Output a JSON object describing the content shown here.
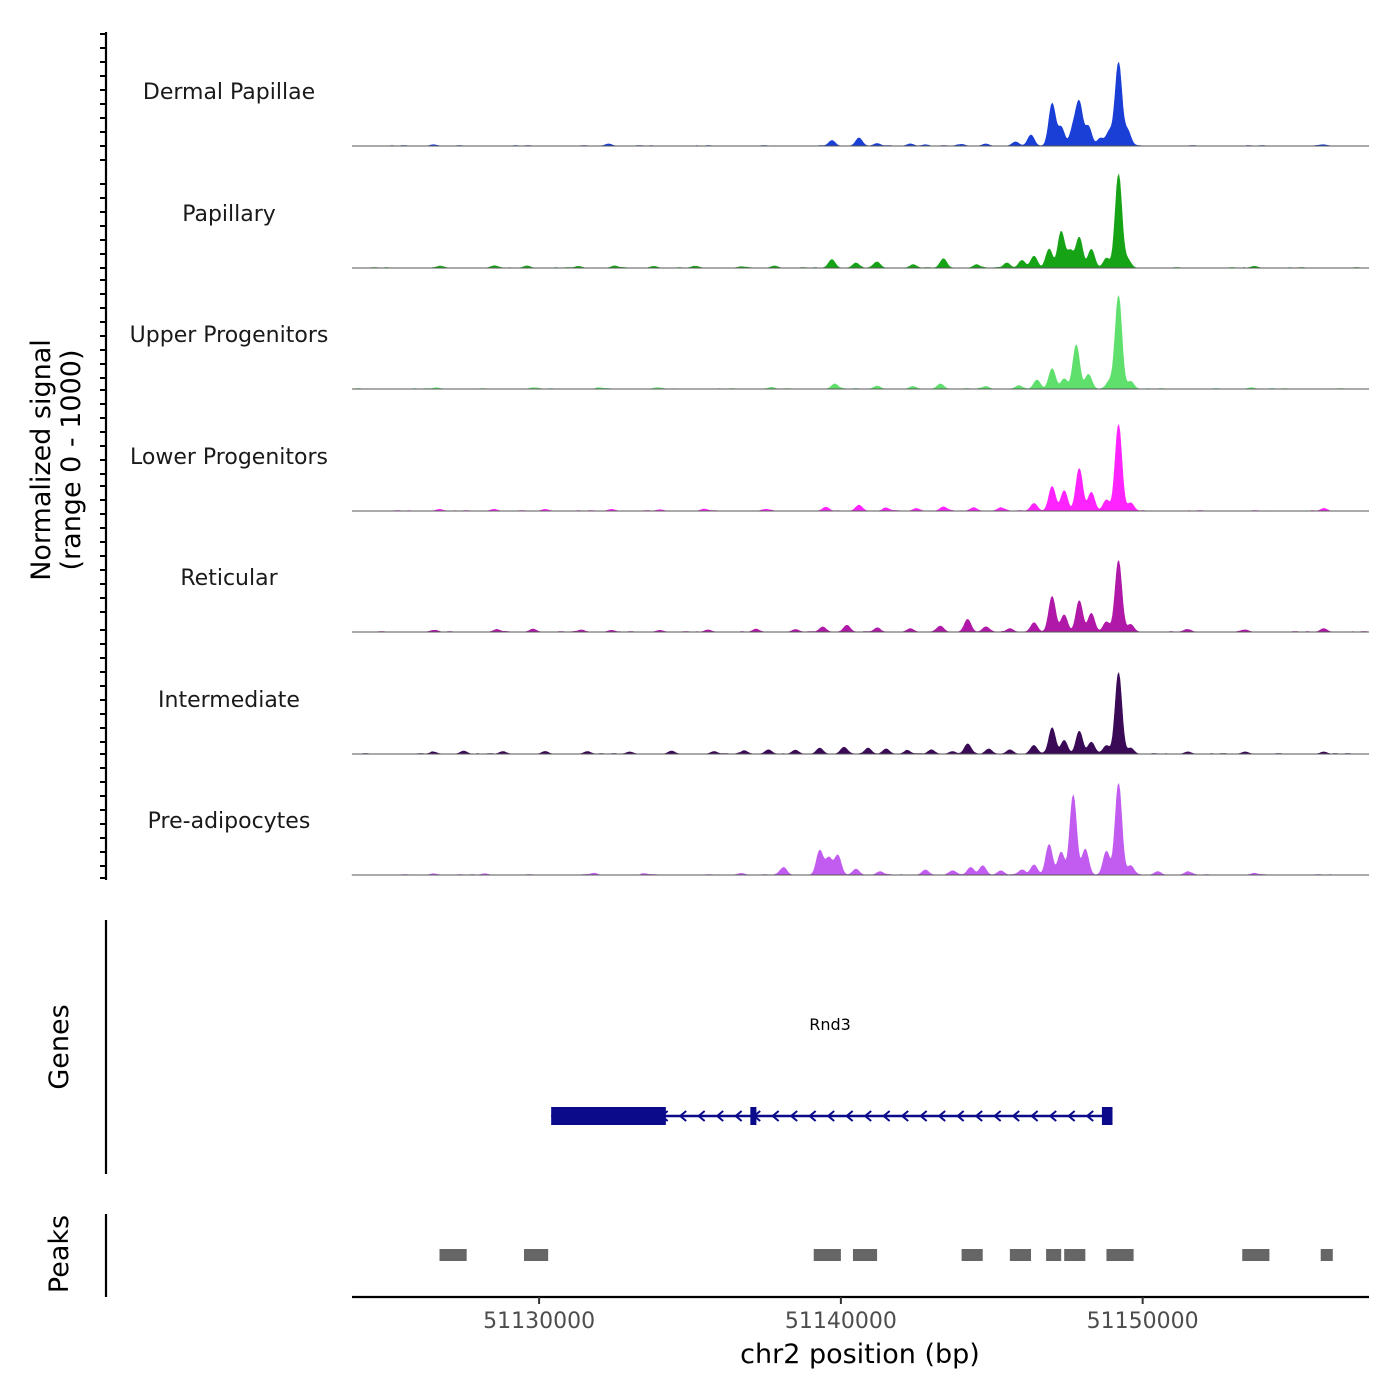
{
  "chart_data": {
    "type": "area",
    "chromosome": "chr2",
    "xlabel": "chr2 position (bp)",
    "ylabel_line1": "Normalized signal",
    "ylabel_line2": "(range 0 - 1000)",
    "xlim": [
      51123800,
      51157500
    ],
    "xticks": [
      51130000,
      51140000,
      51150000
    ],
    "xtick_labels": [
      "51130000",
      "51140000",
      "51150000"
    ],
    "ylim": [
      0,
      1000
    ],
    "tracks": [
      {
        "name": "Dermal Papillae",
        "color": "#1a3fd6",
        "peaks": [
          [
            51126500,
            15
          ],
          [
            51132300,
            25
          ],
          [
            51139700,
            60
          ],
          [
            51140600,
            95
          ],
          [
            51141200,
            30
          ],
          [
            51142300,
            25
          ],
          [
            51142800,
            15
          ],
          [
            51144000,
            20
          ],
          [
            51144800,
            25
          ],
          [
            51145800,
            45
          ],
          [
            51146300,
            130
          ],
          [
            51147000,
            500
          ],
          [
            51147300,
            220
          ],
          [
            51147700,
            200
          ],
          [
            51147900,
            490
          ],
          [
            51148200,
            230
          ],
          [
            51148600,
            90
          ],
          [
            51148900,
            170
          ],
          [
            51149200,
            980
          ],
          [
            51149500,
            180
          ],
          [
            51156000,
            15
          ]
        ]
      },
      {
        "name": "Papillary",
        "color": "#16a316",
        "peaks": [
          [
            51126700,
            20
          ],
          [
            51128500,
            25
          ],
          [
            51129600,
            25
          ],
          [
            51131300,
            20
          ],
          [
            51132500,
            25
          ],
          [
            51133800,
            20
          ],
          [
            51135200,
            20
          ],
          [
            51136700,
            15
          ],
          [
            51137800,
            25
          ],
          [
            51139700,
            100
          ],
          [
            51140500,
            60
          ],
          [
            51141200,
            70
          ],
          [
            51142400,
            40
          ],
          [
            51143400,
            110
          ],
          [
            51144500,
            40
          ],
          [
            51145500,
            60
          ],
          [
            51146000,
            90
          ],
          [
            51146400,
            140
          ],
          [
            51146900,
            220
          ],
          [
            51147300,
            430
          ],
          [
            51147600,
            200
          ],
          [
            51147900,
            360
          ],
          [
            51148300,
            220
          ],
          [
            51148800,
            110
          ],
          [
            51149200,
            1100
          ],
          [
            51149500,
            100
          ],
          [
            51153700,
            20
          ]
        ]
      },
      {
        "name": "Upper Progenitors",
        "color": "#5fe06d",
        "peaks": [
          [
            51126600,
            15
          ],
          [
            51129800,
            15
          ],
          [
            51132000,
            15
          ],
          [
            51133900,
            15
          ],
          [
            51137700,
            20
          ],
          [
            51139800,
            60
          ],
          [
            51141200,
            35
          ],
          [
            51142400,
            25
          ],
          [
            51143300,
            60
          ],
          [
            51144800,
            30
          ],
          [
            51145900,
            40
          ],
          [
            51146500,
            100
          ],
          [
            51147000,
            240
          ],
          [
            51147400,
            120
          ],
          [
            51147800,
            520
          ],
          [
            51148200,
            170
          ],
          [
            51148900,
            90
          ],
          [
            51149200,
            1100
          ],
          [
            51149600,
            90
          ],
          [
            51153600,
            15
          ]
        ]
      },
      {
        "name": "Lower Progenitors",
        "color": "#ff24ff",
        "peaks": [
          [
            51126700,
            20
          ],
          [
            51128500,
            20
          ],
          [
            51130200,
            20
          ],
          [
            51132400,
            20
          ],
          [
            51134000,
            15
          ],
          [
            51135500,
            20
          ],
          [
            51137500,
            20
          ],
          [
            51139500,
            40
          ],
          [
            51140600,
            70
          ],
          [
            51141500,
            35
          ],
          [
            51142500,
            30
          ],
          [
            51143400,
            50
          ],
          [
            51144400,
            40
          ],
          [
            51145300,
            40
          ],
          [
            51146400,
            90
          ],
          [
            51147000,
            290
          ],
          [
            51147400,
            240
          ],
          [
            51147900,
            500
          ],
          [
            51148300,
            220
          ],
          [
            51148800,
            130
          ],
          [
            51149200,
            1020
          ],
          [
            51149600,
            90
          ],
          [
            51156000,
            25
          ]
        ]
      },
      {
        "name": "Reticular",
        "color": "#b018a8",
        "peaks": [
          [
            51126500,
            20
          ],
          [
            51128600,
            30
          ],
          [
            51129800,
            35
          ],
          [
            51131400,
            25
          ],
          [
            51132400,
            20
          ],
          [
            51134000,
            20
          ],
          [
            51135600,
            25
          ],
          [
            51137200,
            30
          ],
          [
            51138500,
            30
          ],
          [
            51139400,
            60
          ],
          [
            51140200,
            80
          ],
          [
            51141200,
            45
          ],
          [
            51142300,
            40
          ],
          [
            51143300,
            70
          ],
          [
            51144200,
            150
          ],
          [
            51144800,
            60
          ],
          [
            51145600,
            40
          ],
          [
            51146400,
            110
          ],
          [
            51147000,
            420
          ],
          [
            51147400,
            200
          ],
          [
            51147900,
            370
          ],
          [
            51148300,
            220
          ],
          [
            51148800,
            120
          ],
          [
            51149200,
            840
          ],
          [
            51149600,
            90
          ],
          [
            51151500,
            30
          ],
          [
            51153400,
            25
          ],
          [
            51156000,
            40
          ]
        ]
      },
      {
        "name": "Intermediate",
        "color": "#3b0a57",
        "peaks": [
          [
            51126500,
            25
          ],
          [
            51127500,
            35
          ],
          [
            51128800,
            30
          ],
          [
            51130200,
            25
          ],
          [
            51131600,
            30
          ],
          [
            51133000,
            25
          ],
          [
            51134400,
            30
          ],
          [
            51135800,
            30
          ],
          [
            51136800,
            40
          ],
          [
            51137600,
            50
          ],
          [
            51138500,
            40
          ],
          [
            51139300,
            70
          ],
          [
            51140100,
            80
          ],
          [
            51140900,
            70
          ],
          [
            51141500,
            60
          ],
          [
            51142200,
            40
          ],
          [
            51143000,
            50
          ],
          [
            51143700,
            30
          ],
          [
            51144200,
            120
          ],
          [
            51144900,
            60
          ],
          [
            51145600,
            50
          ],
          [
            51146400,
            100
          ],
          [
            51147000,
            310
          ],
          [
            51147400,
            160
          ],
          [
            51147900,
            270
          ],
          [
            51148300,
            140
          ],
          [
            51148800,
            100
          ],
          [
            51149200,
            960
          ],
          [
            51149600,
            70
          ],
          [
            51151500,
            25
          ],
          [
            51153400,
            25
          ],
          [
            51156000,
            25
          ]
        ]
      },
      {
        "name": "Pre-adipocytes",
        "color": "#c25cf0",
        "peaks": [
          [
            51126500,
            15
          ],
          [
            51128200,
            15
          ],
          [
            51131800,
            20
          ],
          [
            51133500,
            15
          ],
          [
            51136700,
            20
          ],
          [
            51138100,
            90
          ],
          [
            51139300,
            290
          ],
          [
            51139600,
            200
          ],
          [
            51139900,
            230
          ],
          [
            51140500,
            70
          ],
          [
            51141300,
            40
          ],
          [
            51142800,
            60
          ],
          [
            51143700,
            50
          ],
          [
            51144300,
            90
          ],
          [
            51144700,
            110
          ],
          [
            51145300,
            50
          ],
          [
            51146000,
            60
          ],
          [
            51146400,
            120
          ],
          [
            51146900,
            360
          ],
          [
            51147300,
            270
          ],
          [
            51147700,
            940
          ],
          [
            51148100,
            300
          ],
          [
            51148800,
            280
          ],
          [
            51149200,
            1080
          ],
          [
            51149600,
            110
          ],
          [
            51150500,
            40
          ],
          [
            51151500,
            40
          ],
          [
            51153700,
            20
          ]
        ]
      }
    ],
    "gene": {
      "name": "Rnd3",
      "strand": "-",
      "start": 51130400,
      "end": 51149000,
      "exons": [
        [
          51130400,
          51134200
        ],
        [
          51137000,
          51137200
        ],
        [
          51148650,
          51149000
        ]
      ],
      "color": "#0a0a8a"
    },
    "peak_regions": [
      [
        51126700,
        51127600
      ],
      [
        51129500,
        51130300
      ],
      [
        51139100,
        51140000
      ],
      [
        51140400,
        51141200
      ],
      [
        51144000,
        51144700
      ],
      [
        51145600,
        51146300
      ],
      [
        51146800,
        51147300
      ],
      [
        51147400,
        51148100
      ],
      [
        51148800,
        51149700
      ],
      [
        51153300,
        51154200
      ],
      [
        51155900,
        51156300
      ]
    ],
    "peak_color": "#666666",
    "panel_titles": {
      "genes": "Genes",
      "peaks": "Peaks"
    }
  }
}
